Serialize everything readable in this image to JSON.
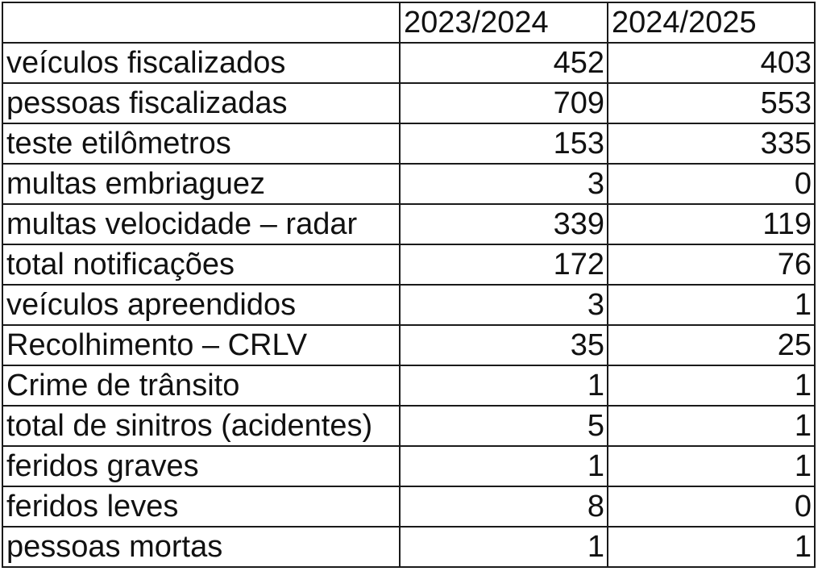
{
  "table": {
    "columns": [
      "",
      "2023/2024",
      "2024/2025"
    ],
    "rows": [
      {
        "label": "veículos fiscalizados",
        "y2023_2024": "452",
        "y2024_2025": "403"
      },
      {
        "label": "pessoas fiscalizadas",
        "y2023_2024": "709",
        "y2024_2025": "553"
      },
      {
        "label": "teste etilômetros",
        "y2023_2024": "153",
        "y2024_2025": "335"
      },
      {
        "label": "multas embriaguez",
        "y2023_2024": "3",
        "y2024_2025": "0"
      },
      {
        "label": "multas velocidade – radar",
        "y2023_2024": "339",
        "y2024_2025": "119"
      },
      {
        "label": "total notificações",
        "y2023_2024": "172",
        "y2024_2025": "76"
      },
      {
        "label": "veículos apreendidos",
        "y2023_2024": "3",
        "y2024_2025": "1"
      },
      {
        "label": "Recolhimento – CRLV",
        "y2023_2024": "35",
        "y2024_2025": "25"
      },
      {
        "label": "Crime de trânsito",
        "y2023_2024": "1",
        "y2024_2025": "1"
      },
      {
        "label": "total de sinitros (acidentes)",
        "y2023_2024": "5",
        "y2024_2025": "1"
      },
      {
        "label": "feridos graves",
        "y2023_2024": "1",
        "y2024_2025": "1"
      },
      {
        "label": "feridos leves",
        "y2023_2024": "8",
        "y2024_2025": "0"
      },
      {
        "label": "pessoas mortas",
        "y2023_2024": "1",
        "y2024_2025": "1"
      }
    ]
  }
}
